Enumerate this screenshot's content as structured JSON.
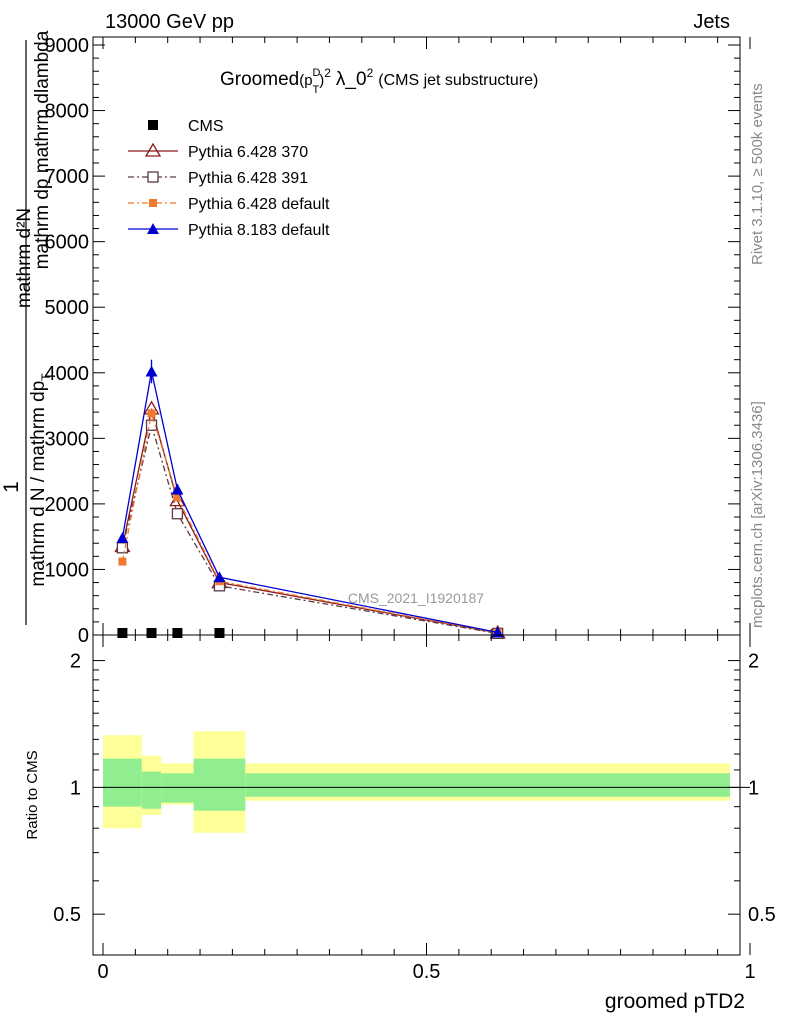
{
  "header": {
    "energy_label": "13000 GeV pp",
    "process_label": "Jets",
    "rivet_label": "Rivet 3.1.10, ≥ 500k events",
    "mcplots_label": "mcplots.cern.ch [arXiv:1306.3436]",
    "analysis_label": "CMS_2021_I1920187"
  },
  "colors": {
    "cms": "#000000",
    "p370": "#8b1a1a",
    "p391": "#5a3a44",
    "p6def": "#f07a30",
    "p8def": "#0000d0",
    "band_inner": "#90ee90",
    "band_outer": "#ffff99"
  },
  "chart_data": [
    {
      "type": "line",
      "title": "Groomed",
      "title_suffix": "λ_0",
      "title_note": "(CMS jet substructure)",
      "title_p": "(p",
      "title_sub_T": "T",
      "title_sup_D": "D",
      "title_close": ")",
      "title_sup_2": "2",
      "title_sup_2b": "2",
      "ylabel_numerator": "mathrm d²N",
      "ylabel_numerator_sup": "",
      "ylabel_numerator2": "mathrm dp",
      "ylabel_numerator2_sub": "T",
      "ylabel_numerator3": " mathrm dlambda",
      "ylabel_one": "1",
      "ylabel_den": "mathrm d N / mathrm dp",
      "ylabel_den_sub": "T",
      "ylabel_den_lines": [
        "mathrm d²N",
        "mathrm dp mathrm dlambda"
      ],
      "xlabel": "groomed pTD2",
      "ylim": [
        0,
        9000
      ],
      "xlim": [
        0,
        1
      ],
      "ytick_values": [
        0,
        1000,
        2000,
        3000,
        4000,
        5000,
        6000,
        7000,
        8000,
        9000
      ],
      "ytick_labels": [
        "0",
        "1000",
        "2000",
        "3000",
        "4000",
        "5000",
        "6000",
        "7000",
        "8000",
        "9000"
      ],
      "legend_position": "top-left",
      "series": [
        {
          "name": "CMS",
          "key": "cms",
          "marker": "square-filled",
          "x": [
            0.03,
            0.075,
            0.115,
            0.18
          ],
          "y": [
            5,
            5,
            5,
            5
          ]
        },
        {
          "name": "Pythia 6.428 370",
          "key": "p370",
          "marker": "triangle-open",
          "dash": "",
          "x": [
            0.03,
            0.075,
            0.115,
            0.18,
            0.61
          ],
          "y": [
            1350,
            3450,
            2050,
            800,
            30
          ]
        },
        {
          "name": "Pythia 6.428 391",
          "key": "p391",
          "marker": "square-open",
          "dash": "6,3,2,3",
          "x": [
            0.03,
            0.075,
            0.115,
            0.18,
            0.61
          ],
          "y": [
            1330,
            3200,
            1850,
            750,
            25
          ]
        },
        {
          "name": "Pythia 6.428 default",
          "key": "p6def",
          "marker": "square-filled-small",
          "dash": "6,3,2,3",
          "x": [
            0.03,
            0.075,
            0.115,
            0.18,
            0.61
          ],
          "y": [
            1120,
            3380,
            2100,
            820,
            35
          ]
        },
        {
          "name": "Pythia 8.183 default",
          "key": "p8def",
          "marker": "triangle-filled",
          "dash": "",
          "x": [
            0.03,
            0.075,
            0.115,
            0.18,
            0.61
          ],
          "y": [
            1480,
            4020,
            2220,
            880,
            40
          ],
          "err": [
            40,
            180,
            80,
            30,
            5
          ]
        }
      ]
    },
    {
      "type": "area",
      "ylabel": "Ratio to CMS",
      "xlabel": "groomed pTD2",
      "ylim": [
        0.4,
        2.3
      ],
      "xlim": [
        0,
        1
      ],
      "ytick_values": [
        0.5,
        1,
        2
      ],
      "ytick_labels": [
        "0.5",
        "1",
        "2"
      ],
      "xtick_values": [
        0,
        0.5,
        1
      ],
      "xtick_labels": [
        "0",
        "0.5",
        "1"
      ],
      "bins": [
        {
          "lo": 0.0,
          "hi": 0.06,
          "inner": [
            0.9,
            1.17
          ],
          "outer": [
            0.8,
            1.33
          ]
        },
        {
          "lo": 0.06,
          "hi": 0.09,
          "inner": [
            0.89,
            1.09
          ],
          "outer": [
            0.86,
            1.19
          ]
        },
        {
          "lo": 0.09,
          "hi": 0.14,
          "inner": [
            0.92,
            1.08
          ],
          "outer": [
            0.91,
            1.14
          ]
        },
        {
          "lo": 0.14,
          "hi": 0.22,
          "inner": [
            0.88,
            1.17
          ],
          "outer": [
            0.78,
            1.36
          ]
        },
        {
          "lo": 0.22,
          "hi": 1.0,
          "inner": [
            0.95,
            1.08
          ],
          "outer": [
            0.93,
            1.14
          ]
        }
      ]
    }
  ]
}
